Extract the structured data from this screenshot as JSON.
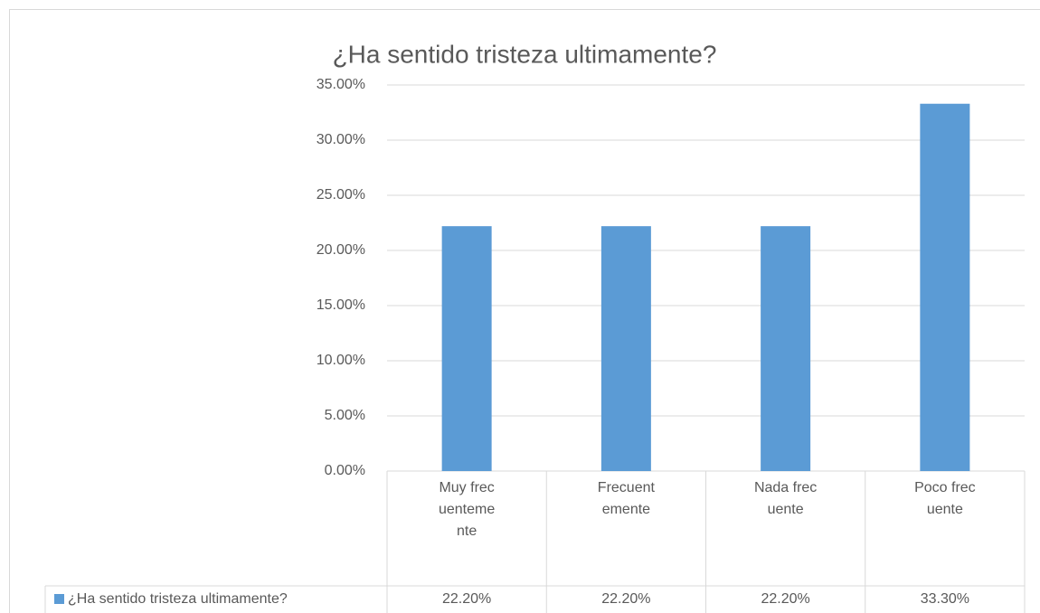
{
  "chart_data": {
    "type": "bar",
    "title": "¿Ha sentido tristeza ultimamente?",
    "categories": [
      "Muy frecuentemente",
      "Frecuentemente",
      "Nada frecuente",
      "Poco frecuente"
    ],
    "series": [
      {
        "name": "¿Ha sentido tristeza ultimamente?",
        "color": "#5b9bd5",
        "values": [
          22.2,
          22.2,
          22.2,
          33.3
        ],
        "value_labels": [
          "22.20%",
          "22.20%",
          "22.20%",
          "33.30%"
        ]
      }
    ],
    "ylim": [
      0,
      35
    ],
    "yticks": [
      {
        "value": 0,
        "label": "0.00%"
      },
      {
        "value": 5,
        "label": "5.00%"
      },
      {
        "value": 10,
        "label": "10.00%"
      },
      {
        "value": 15,
        "label": "15.00%"
      },
      {
        "value": 20,
        "label": "20.00%"
      },
      {
        "value": 25,
        "label": "25.00%"
      },
      {
        "value": 30,
        "label": "30.00%"
      },
      {
        "value": 35,
        "label": "35.00%"
      }
    ],
    "grid": true
  }
}
